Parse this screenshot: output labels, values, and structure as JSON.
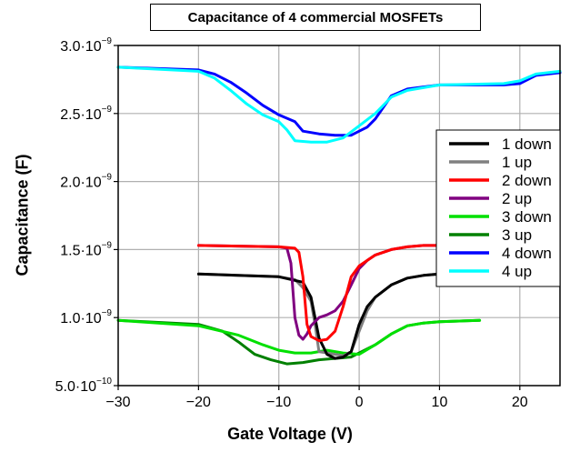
{
  "chart_data": {
    "type": "line",
    "title": "Capacitance of 4 commercial MOSFETs",
    "xlabel": "Gate Voltage (V)",
    "ylabel": "Capacitance (F)",
    "xlim": [
      -30,
      25
    ],
    "ylim": [
      5e-10,
      3e-09
    ],
    "xticks": [
      -30,
      -20,
      -10,
      0,
      10,
      20
    ],
    "xtick_labels": [
      "−30",
      "−20",
      "−10",
      "0",
      "10",
      "20"
    ],
    "yticks": [
      5e-10,
      1e-09,
      1.5e-09,
      2e-09,
      2.5e-09,
      3e-09
    ],
    "ytick_labels": [
      {
        "mant": "5.0·10",
        "exp": "−10"
      },
      {
        "mant": "1.0·10",
        "exp": "−9"
      },
      {
        "mant": "1.5·10",
        "exp": "−9"
      },
      {
        "mant": "2.0·10",
        "exp": "−9"
      },
      {
        "mant": "2.5·10",
        "exp": "−9"
      },
      {
        "mant": "3.0·10",
        "exp": "−9"
      }
    ],
    "grid": true,
    "legend_position": "right",
    "series": [
      {
        "name": "1 down",
        "color": "#000000",
        "x": [
          -20,
          -10,
          -7,
          -6,
          -5,
          -4,
          -3,
          -2,
          -1,
          0,
          1,
          2,
          4,
          6,
          8,
          10
        ],
        "y": [
          1.32e-09,
          1.3e-09,
          1.26e-09,
          1.15e-09,
          8.5e-10,
          7.3e-10,
          7e-10,
          7.1e-10,
          7.5e-10,
          9.5e-10,
          1.08e-09,
          1.15e-09,
          1.24e-09,
          1.29e-09,
          1.31e-09,
          1.32e-09
        ]
      },
      {
        "name": "1 up",
        "color": "#808080",
        "x": [
          -20,
          -10,
          -8,
          -7,
          -6,
          -5.5,
          -5,
          -3,
          -2,
          -1,
          0,
          1,
          2,
          4,
          6,
          8,
          10
        ],
        "y": [
          1.32e-09,
          1.3e-09,
          1.28e-09,
          1.22e-09,
          1.12e-09,
          9.5e-10,
          7.5e-10,
          7.3e-10,
          7.2e-10,
          7.5e-10,
          9e-10,
          1.05e-09,
          1.15e-09,
          1.24e-09,
          1.29e-09,
          1.31e-09,
          1.32e-09
        ]
      },
      {
        "name": "2 down",
        "color": "#ff0000",
        "x": [
          -20,
          -10,
          -8,
          -7.5,
          -7,
          -6.5,
          -6,
          -5,
          -4,
          -3,
          -2,
          -1,
          0,
          1,
          2,
          4,
          6,
          8,
          10
        ],
        "y": [
          1.53e-09,
          1.52e-09,
          1.51e-09,
          1.48e-09,
          1.3e-09,
          9.5e-10,
          8.6e-10,
          8.3e-10,
          8.4e-10,
          9e-10,
          1.08e-09,
          1.3e-09,
          1.38e-09,
          1.42e-09,
          1.46e-09,
          1.5e-09,
          1.52e-09,
          1.53e-09,
          1.53e-09
        ]
      },
      {
        "name": "2 up",
        "color": "#800080",
        "x": [
          -20,
          -10,
          -9,
          -8.5,
          -8,
          -7.5,
          -7,
          -6.5,
          -6,
          -5,
          -4,
          -3,
          -2,
          -1,
          0,
          1,
          2,
          4,
          6,
          8,
          10
        ],
        "y": [
          1.53e-09,
          1.52e-09,
          1.51e-09,
          1.4e-09,
          1e-09,
          8.7e-10,
          8.4e-10,
          8.8e-10,
          9.4e-10,
          1e-09,
          1.02e-09,
          1.05e-09,
          1.12e-09,
          1.24e-09,
          1.36e-09,
          1.42e-09,
          1.46e-09,
          1.5e-09,
          1.52e-09,
          1.53e-09,
          1.53e-09
        ]
      },
      {
        "name": "3 down",
        "color": "#00e000",
        "x": [
          -30,
          -20,
          -15,
          -12,
          -10,
          -8,
          -6,
          -4,
          -2,
          0,
          2,
          4,
          6,
          8,
          10,
          15
        ],
        "y": [
          9.8e-10,
          9.4e-10,
          8.7e-10,
          8e-10,
          7.6e-10,
          7.4e-10,
          7.4e-10,
          7.6e-10,
          7.4e-10,
          7.3e-10,
          8e-10,
          8.8e-10,
          9.4e-10,
          9.6e-10,
          9.7e-10,
          9.8e-10
        ]
      },
      {
        "name": "3 up",
        "color": "#008000",
        "x": [
          -30,
          -20,
          -17,
          -15,
          -13,
          -11,
          -9,
          -7,
          -5,
          -3,
          -1,
          0,
          2,
          4,
          6,
          8,
          10,
          15
        ],
        "y": [
          9.8e-10,
          9.5e-10,
          9e-10,
          8.2e-10,
          7.3e-10,
          6.9e-10,
          6.6e-10,
          6.7e-10,
          6.9e-10,
          7e-10,
          7.1e-10,
          7.4e-10,
          8e-10,
          8.8e-10,
          9.4e-10,
          9.6e-10,
          9.7e-10,
          9.8e-10
        ]
      },
      {
        "name": "4 down",
        "color": "#0000ff",
        "x": [
          -30,
          -20,
          -18,
          -16,
          -14,
          -12,
          -10,
          -8,
          -7,
          -5,
          -3,
          -1,
          0,
          1,
          2,
          4,
          6,
          10,
          18,
          20,
          22,
          25
        ],
        "y": [
          2.84e-09,
          2.82e-09,
          2.79e-09,
          2.73e-09,
          2.65e-09,
          2.56e-09,
          2.49e-09,
          2.44e-09,
          2.37e-09,
          2.35e-09,
          2.34e-09,
          2.34e-09,
          2.37e-09,
          2.4e-09,
          2.46e-09,
          2.63e-09,
          2.68e-09,
          2.71e-09,
          2.71e-09,
          2.72e-09,
          2.78e-09,
          2.8e-09
        ]
      },
      {
        "name": "4 up",
        "color": "#00ffff",
        "x": [
          -30,
          -20,
          -18,
          -16,
          -14,
          -12,
          -10,
          -9,
          -8,
          -6,
          -4,
          -2,
          0,
          2,
          4,
          6,
          10,
          18,
          20,
          22,
          25
        ],
        "y": [
          2.84e-09,
          2.81e-09,
          2.76e-09,
          2.67e-09,
          2.57e-09,
          2.49e-09,
          2.44e-09,
          2.38e-09,
          2.3e-09,
          2.29e-09,
          2.29e-09,
          2.32e-09,
          2.41e-09,
          2.5e-09,
          2.62e-09,
          2.67e-09,
          2.71e-09,
          2.72e-09,
          2.74e-09,
          2.79e-09,
          2.81e-09
        ]
      }
    ]
  }
}
